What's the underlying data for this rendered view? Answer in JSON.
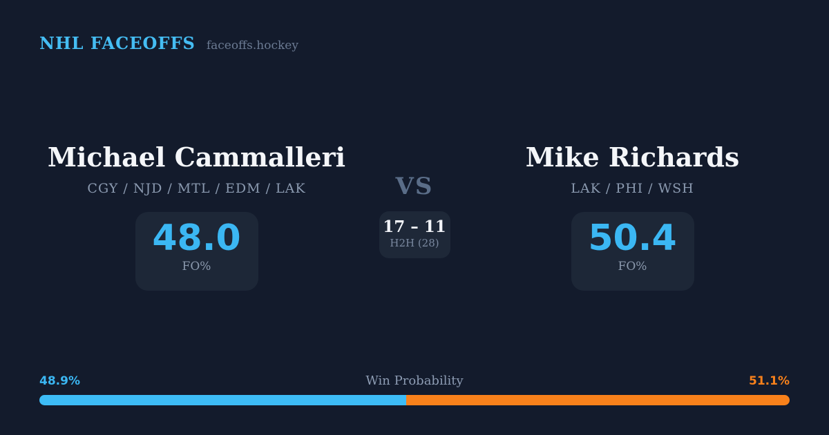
{
  "header": {
    "brand": "NHL FACEOFFS",
    "site": "faceoffs.hockey"
  },
  "players": {
    "left": {
      "name": "Michael Cammalleri",
      "teams": "CGY / NJD / MTL / EDM / LAK",
      "stat_value": "48.0",
      "stat_label": "FO%",
      "win_prob_label": "48.9%",
      "win_prob_pct": 48.9
    },
    "right": {
      "name": "Mike Richards",
      "teams": "LAK / PHI / WSH",
      "stat_value": "50.4",
      "stat_label": "FO%",
      "win_prob_label": "51.1%",
      "win_prob_pct": 51.1
    }
  },
  "center": {
    "vs": "VS",
    "h2h_score": "17 – 11",
    "h2h_label": "H2H (28)"
  },
  "win_bar": {
    "title": "Win Probability"
  },
  "colors": {
    "background": "#131b2c",
    "panel": "#1d2737",
    "accent_blue": "#3dbcf6",
    "accent_orange": "#f8811b",
    "name_white": "#f4f6f9",
    "muted_slate": "#8b9ab0",
    "vs_slate": "#5a6d88"
  }
}
